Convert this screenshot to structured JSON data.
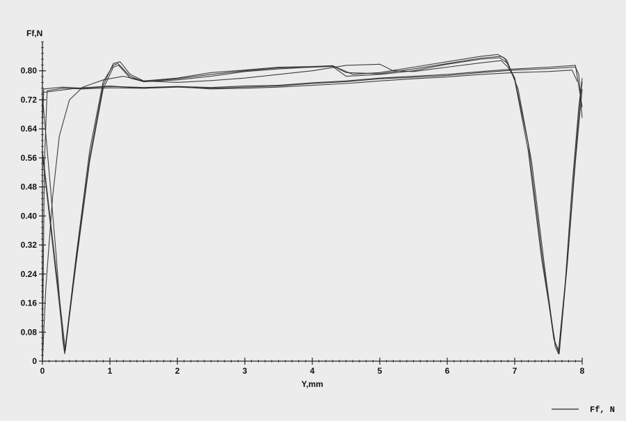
{
  "chart_data": {
    "type": "line",
    "title": "",
    "xlabel": "Y,mm",
    "ylabel": "Ff,N",
    "xlim": [
      0,
      8
    ],
    "ylim": [
      0,
      0.88
    ],
    "x_ticks": [
      0,
      1,
      2,
      3,
      4,
      5,
      6,
      7,
      8
    ],
    "x_tick_labels": [
      "0",
      "1",
      "2",
      "3",
      "4",
      "5",
      "6",
      "7",
      "8"
    ],
    "y_ticks": [
      0,
      0.08,
      0.16,
      0.24,
      0.32,
      0.4,
      0.48,
      0.56,
      0.64,
      0.72,
      0.8
    ],
    "y_tick_labels": [
      "0",
      "0.08",
      "0.16",
      "0.24",
      "0.32",
      "0.40",
      "0.48",
      "0.56",
      "0.64",
      "0.72",
      "0.80"
    ],
    "grid": false,
    "legend": {
      "position": "bottom-right",
      "entries": [
        "Ff, N"
      ]
    },
    "line_color": "#2a2a2a",
    "series": [
      {
        "name": "Ff, N",
        "points": [
          [
            0.0,
            0.03
          ],
          [
            0.03,
            0.55
          ],
          [
            0.07,
            0.745
          ],
          [
            0.3,
            0.752
          ],
          [
            0.6,
            0.75
          ],
          [
            1.0,
            0.753
          ],
          [
            1.5,
            0.752
          ],
          [
            2.0,
            0.755
          ],
          [
            2.5,
            0.752
          ],
          [
            3.0,
            0.755
          ],
          [
            3.5,
            0.758
          ],
          [
            4.0,
            0.765
          ],
          [
            4.5,
            0.77
          ],
          [
            5.0,
            0.778
          ],
          [
            5.5,
            0.782
          ],
          [
            6.0,
            0.787
          ],
          [
            6.5,
            0.795
          ],
          [
            7.0,
            0.802
          ],
          [
            7.5,
            0.806
          ],
          [
            7.9,
            0.81
          ],
          [
            7.95,
            0.79
          ],
          [
            8.0,
            0.67
          ]
        ]
      },
      {
        "name": "",
        "points": [
          [
            0.0,
            0.58
          ],
          [
            0.34,
            0.03
          ],
          [
            0.5,
            0.28
          ],
          [
            0.7,
            0.56
          ],
          [
            0.9,
            0.76
          ],
          [
            1.05,
            0.82
          ],
          [
            1.15,
            0.825
          ],
          [
            1.3,
            0.79
          ],
          [
            1.5,
            0.772
          ],
          [
            2.0,
            0.78
          ],
          [
            2.5,
            0.795
          ],
          [
            3.0,
            0.802
          ],
          [
            3.5,
            0.81
          ],
          [
            4.0,
            0.812
          ],
          [
            4.3,
            0.814
          ],
          [
            4.6,
            0.79
          ],
          [
            5.0,
            0.795
          ],
          [
            5.5,
            0.81
          ],
          [
            6.0,
            0.825
          ],
          [
            6.5,
            0.84
          ],
          [
            6.75,
            0.845
          ],
          [
            6.85,
            0.835
          ],
          [
            7.0,
            0.78
          ],
          [
            7.2,
            0.6
          ],
          [
            7.4,
            0.3
          ],
          [
            7.58,
            0.06
          ],
          [
            7.65,
            0.03
          ],
          [
            7.75,
            0.22
          ],
          [
            7.85,
            0.48
          ],
          [
            7.95,
            0.7
          ],
          [
            8.0,
            0.78
          ]
        ]
      },
      {
        "name": "",
        "points": [
          [
            0.0,
            0.57
          ],
          [
            0.33,
            0.025
          ],
          [
            0.5,
            0.29
          ],
          [
            0.7,
            0.58
          ],
          [
            0.9,
            0.77
          ],
          [
            1.05,
            0.815
          ],
          [
            1.12,
            0.82
          ],
          [
            1.3,
            0.785
          ],
          [
            1.5,
            0.77
          ],
          [
            2.0,
            0.778
          ],
          [
            2.5,
            0.79
          ],
          [
            3.0,
            0.8
          ],
          [
            3.5,
            0.808
          ],
          [
            4.0,
            0.81
          ],
          [
            4.3,
            0.814
          ],
          [
            4.5,
            0.795
          ],
          [
            5.0,
            0.792
          ],
          [
            5.5,
            0.805
          ],
          [
            6.0,
            0.82
          ],
          [
            6.5,
            0.835
          ],
          [
            6.8,
            0.84
          ],
          [
            6.88,
            0.83
          ],
          [
            7.0,
            0.775
          ],
          [
            7.2,
            0.58
          ],
          [
            7.4,
            0.28
          ],
          [
            7.6,
            0.05
          ],
          [
            7.66,
            0.02
          ],
          [
            7.77,
            0.25
          ],
          [
            7.88,
            0.52
          ],
          [
            7.97,
            0.72
          ],
          [
            8.0,
            0.77
          ]
        ]
      },
      {
        "name": "",
        "points": [
          [
            0.0,
            0.73
          ],
          [
            0.1,
            0.52
          ],
          [
            0.2,
            0.3
          ],
          [
            0.3,
            0.06
          ],
          [
            0.33,
            0.02
          ],
          [
            0.5,
            0.27
          ],
          [
            0.7,
            0.55
          ],
          [
            0.9,
            0.75
          ],
          [
            1.05,
            0.81
          ],
          [
            1.13,
            0.815
          ],
          [
            1.3,
            0.78
          ],
          [
            1.5,
            0.77
          ],
          [
            2.0,
            0.775
          ],
          [
            2.5,
            0.785
          ],
          [
            3.0,
            0.798
          ],
          [
            3.5,
            0.805
          ],
          [
            4.0,
            0.81
          ],
          [
            4.3,
            0.812
          ],
          [
            4.5,
            0.785
          ],
          [
            5.0,
            0.79
          ],
          [
            5.5,
            0.8
          ],
          [
            6.0,
            0.818
          ],
          [
            6.5,
            0.832
          ],
          [
            6.78,
            0.836
          ],
          [
            6.9,
            0.82
          ],
          [
            7.05,
            0.75
          ],
          [
            7.25,
            0.55
          ],
          [
            7.45,
            0.25
          ],
          [
            7.6,
            0.04
          ],
          [
            7.65,
            0.02
          ],
          [
            7.78,
            0.27
          ],
          [
            7.9,
            0.55
          ],
          [
            8.0,
            0.75
          ]
        ]
      },
      {
        "name": "",
        "points": [
          [
            0.0,
            0.65
          ],
          [
            0.02,
            0.75
          ],
          [
            0.3,
            0.755
          ],
          [
            0.6,
            0.752
          ],
          [
            1.0,
            0.757
          ],
          [
            1.5,
            0.754
          ],
          [
            2.0,
            0.757
          ],
          [
            2.5,
            0.754
          ],
          [
            3.0,
            0.758
          ],
          [
            3.5,
            0.76
          ],
          [
            4.0,
            0.767
          ],
          [
            4.5,
            0.772
          ],
          [
            5.0,
            0.78
          ],
          [
            5.5,
            0.785
          ],
          [
            6.0,
            0.79
          ],
          [
            6.5,
            0.798
          ],
          [
            7.0,
            0.805
          ],
          [
            7.5,
            0.81
          ],
          [
            7.9,
            0.815
          ],
          [
            8.0,
            0.7
          ]
        ]
      },
      {
        "name": "",
        "points": [
          [
            0.0,
            0.0
          ],
          [
            0.05,
            0.2
          ],
          [
            0.15,
            0.45
          ],
          [
            0.25,
            0.62
          ],
          [
            0.4,
            0.72
          ],
          [
            0.6,
            0.755
          ],
          [
            0.9,
            0.775
          ],
          [
            1.2,
            0.785
          ],
          [
            1.5,
            0.772
          ],
          [
            2.0,
            0.768
          ],
          [
            2.5,
            0.773
          ],
          [
            3.0,
            0.78
          ],
          [
            3.5,
            0.79
          ],
          [
            4.0,
            0.8
          ],
          [
            4.5,
            0.815
          ],
          [
            5.0,
            0.818
          ],
          [
            5.2,
            0.8
          ],
          [
            5.5,
            0.798
          ],
          [
            6.0,
            0.81
          ],
          [
            6.5,
            0.822
          ],
          [
            6.8,
            0.828
          ],
          [
            6.9,
            0.81
          ],
          [
            7.0,
            0.78
          ]
        ]
      },
      {
        "name": "",
        "points": [
          [
            0.0,
            0.74
          ],
          [
            0.5,
            0.752
          ],
          [
            1.0,
            0.758
          ],
          [
            1.5,
            0.752
          ],
          [
            2.0,
            0.756
          ],
          [
            2.5,
            0.75
          ],
          [
            3.0,
            0.752
          ],
          [
            3.5,
            0.755
          ],
          [
            4.0,
            0.76
          ],
          [
            4.5,
            0.765
          ],
          [
            5.0,
            0.772
          ],
          [
            5.5,
            0.778
          ],
          [
            6.0,
            0.783
          ],
          [
            6.5,
            0.79
          ],
          [
            7.0,
            0.795
          ],
          [
            7.5,
            0.798
          ],
          [
            7.85,
            0.802
          ],
          [
            7.93,
            0.77
          ]
        ]
      }
    ]
  }
}
